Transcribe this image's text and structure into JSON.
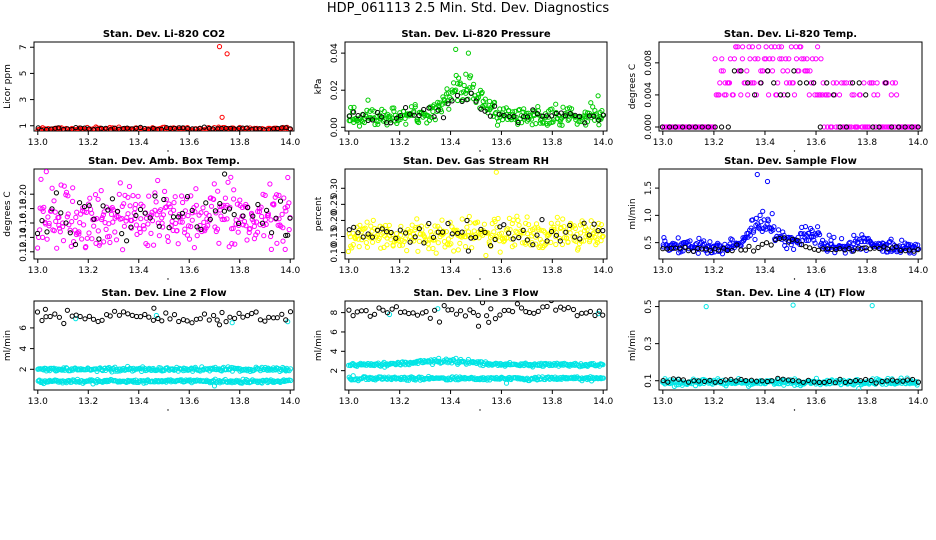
{
  "title": "HDP_061113  2.5 Min. Std. Dev. Diagnostics",
  "colors": {
    "black": "#000000",
    "red": "#ff0000",
    "green": "#00cc00",
    "magenta": "#ff00ff",
    "yellow": "#ffff00",
    "blue": "#0000ff",
    "cyan": "#00e5e5"
  },
  "chart_data": [
    {
      "type": "scatter",
      "title": "Stan. Dev. Li-820 CO2",
      "ylabel": "Licor ppm",
      "xlim": [
        13.0,
        14.0
      ],
      "ylim": [
        0.6,
        7.4
      ],
      "xticks": [
        "13.0",
        "13.2",
        "13.4",
        "13.6",
        "13.8",
        "14.0"
      ],
      "yticks": [
        "1",
        "3",
        "5",
        "7"
      ],
      "ytick_values": [
        1,
        3,
        5,
        7
      ],
      "series": [
        {
          "name": "main",
          "color": "red",
          "pattern": {
            "type": "flat",
            "n": 170,
            "base": 0.75,
            "noise": 0.08
          },
          "outliers": [
            [
              13.72,
              7.05
            ],
            [
              13.75,
              6.5
            ],
            [
              13.73,
              1.65
            ],
            [
              13.36,
              0.55
            ]
          ]
        },
        {
          "name": "overlay",
          "color": "black",
          "pattern": {
            "type": "flat",
            "n": 60,
            "base": 0.78,
            "noise": 0.06
          }
        }
      ]
    },
    {
      "type": "scatter",
      "title": "Stan. Dev. Li-820 Pressure",
      "ylabel": "kPa",
      "xlim": [
        13.0,
        14.0
      ],
      "ylim": [
        -0.002,
        0.046
      ],
      "xticks": [
        "13.0",
        "13.2",
        "13.4",
        "13.6",
        "13.8",
        "14.0"
      ],
      "yticks": [
        "0.00",
        "0.02",
        "0.04"
      ],
      "ytick_values": [
        0,
        0.02,
        0.04
      ],
      "series": [
        {
          "name": "main",
          "color": "green",
          "pattern": {
            "type": "hump",
            "n": 320,
            "base": 0.006,
            "noise": 0.0045,
            "peak_x": 13.45,
            "peak_amp": 0.018,
            "peak_w": 0.09
          },
          "outliers": [
            [
              13.42,
              0.042
            ],
            [
              13.47,
              0.04
            ],
            [
              13.98,
              0.017
            ]
          ]
        },
        {
          "name": "overlay",
          "color": "black",
          "pattern": {
            "type": "hump",
            "n": 55,
            "base": 0.006,
            "noise": 0.003,
            "peak_x": 13.45,
            "peak_amp": 0.01,
            "peak_w": 0.08
          }
        }
      ]
    },
    {
      "type": "scatter",
      "title": "Stan. Dev. Li-820 Temp.",
      "ylabel": "degrees C",
      "xlim": [
        13.0,
        14.0
      ],
      "ylim": [
        -0.0005,
        0.0106
      ],
      "xticks": [
        "13.0",
        "13.2",
        "13.4",
        "13.6",
        "13.8",
        "14.0"
      ],
      "yticks": [
        "0.000",
        "0.004",
        "0.008"
      ],
      "ytick_values": [
        0,
        0.004,
        0.008
      ],
      "series": [
        {
          "name": "main",
          "color": "magenta",
          "pattern": {
            "type": "levels",
            "n": 230,
            "base": 0,
            "x0": 13.2,
            "x1": 13.62,
            "tail_x1": 13.92,
            "levels": [
              0.004,
              0.0055,
              0.007,
              0.0085,
              0.01
            ]
          }
        },
        {
          "name": "overlay",
          "color": "black",
          "pattern": {
            "type": "levels",
            "n": 40,
            "base": 0,
            "x0": 13.28,
            "x1": 13.55,
            "tail_x1": 13.92,
            "levels": [
              0.004,
              0.0055,
              0.007
            ]
          }
        }
      ]
    },
    {
      "type": "scatter",
      "title": "Stan. Dev. Amb. Box Temp.",
      "ylabel": "degrees C",
      "xlim": [
        13.0,
        14.0
      ],
      "ylim": [
        0.11,
        0.235
      ],
      "xticks": [
        "13.0",
        "13.2",
        "13.4",
        "13.6",
        "13.8",
        "14.0"
      ],
      "yticks": [
        "0.12",
        "0.14",
        "0.16",
        "0.18",
        "0.20"
      ],
      "ytick_values": [
        0.12,
        0.14,
        0.16,
        0.18,
        0.2
      ],
      "series": [
        {
          "name": "main",
          "color": "magenta",
          "pattern": {
            "type": "flat",
            "n": 330,
            "base": 0.168,
            "noise": 0.028
          }
        },
        {
          "name": "overlay",
          "color": "black",
          "pattern": {
            "type": "flat",
            "n": 55,
            "base": 0.17,
            "noise": 0.02
          },
          "outliers": [
            [
              13.74,
              0.228
            ],
            [
              13.99,
              0.143
            ]
          ]
        }
      ]
    },
    {
      "type": "scatter",
      "title": "Stan. Dev. Gas Stream RH",
      "ylabel": "percent",
      "xlim": [
        13.0,
        14.0
      ],
      "ylim": [
        0.08,
        0.36
      ],
      "xticks": [
        "13.0",
        "13.2",
        "13.4",
        "13.6",
        "13.8",
        "14.0"
      ],
      "yticks": [
        "0.10",
        "0.15",
        "0.20",
        "0.25",
        "0.30"
      ],
      "ytick_values": [
        0.1,
        0.15,
        0.2,
        0.25,
        0.3
      ],
      "series": [
        {
          "name": "main",
          "color": "yellow",
          "pattern": {
            "type": "flat",
            "n": 330,
            "base": 0.155,
            "noise": 0.03
          },
          "outliers": [
            [
              13.58,
              0.35
            ]
          ]
        },
        {
          "name": "overlay",
          "color": "black",
          "pattern": {
            "type": "flat",
            "n": 55,
            "base": 0.16,
            "noise": 0.022
          },
          "outliers": [
            [
              13.47,
              0.105
            ]
          ]
        }
      ]
    },
    {
      "type": "scatter",
      "title": "Stan. Dev. Sample Flow",
      "ylabel": "ml/min",
      "xlim": [
        13.0,
        14.0
      ],
      "ylim": [
        0.2,
        1.85
      ],
      "xticks": [
        "13.0",
        "13.2",
        "13.4",
        "13.6",
        "13.8",
        "14.0"
      ],
      "yticks": [
        "0.5",
        "1.0",
        "1.5"
      ],
      "ytick_values": [
        0.5,
        1.0,
        1.5
      ],
      "series": [
        {
          "name": "main",
          "color": "blue",
          "pattern": {
            "type": "hump2",
            "n": 320,
            "base": 0.42,
            "noise": 0.06,
            "peak_x": 13.4,
            "peak_amp": 0.55,
            "peak_w": 0.07,
            "peak2_x": 13.58,
            "peak2_amp": 0.3,
            "peak2_w": 0.05,
            "peak3_x": 13.78,
            "peak3_amp": 0.12,
            "peak3_w": 0.04
          },
          "outliers": [
            [
              13.37,
              1.75
            ],
            [
              13.41,
              1.62
            ]
          ]
        },
        {
          "name": "overlay",
          "color": "black",
          "pattern": {
            "type": "hump",
            "n": 60,
            "base": 0.38,
            "noise": 0.05,
            "peak_x": 13.48,
            "peak_amp": 0.2,
            "peak_w": 0.08
          }
        }
      ]
    },
    {
      "type": "scatter",
      "title": "Stan. Dev. Line 2 Flow",
      "ylabel": "ml/min",
      "xlim": [
        13.0,
        14.0
      ],
      "ylim": [
        0.0,
        8.6
      ],
      "xticks": [
        "13.0",
        "13.2",
        "13.4",
        "13.6",
        "13.8",
        "14.0"
      ],
      "yticks": [
        "2",
        "4",
        "6"
      ],
      "ytick_values": [
        2,
        4,
        6
      ],
      "series": [
        {
          "name": "cyan-upper",
          "color": "cyan",
          "pattern": {
            "type": "flat",
            "n": 260,
            "base": 2.0,
            "noise": 0.12
          }
        },
        {
          "name": "cyan-lower",
          "color": "cyan",
          "pattern": {
            "type": "flat",
            "n": 260,
            "base": 0.85,
            "noise": 0.1
          },
          "outliers": [
            [
              13.7,
              0.4
            ]
          ]
        },
        {
          "name": "cyan-top",
          "color": "cyan",
          "pattern": {
            "type": "flat",
            "n": 0,
            "base": 0,
            "noise": 0
          },
          "outliers": [
            [
              13.15,
              6.9
            ],
            [
              13.47,
              7.2
            ],
            [
              13.77,
              6.5
            ],
            [
              13.99,
              6.6
            ]
          ]
        },
        {
          "name": "overlay",
          "color": "black",
          "pattern": {
            "type": "flat",
            "n": 60,
            "base": 7.0,
            "noise": 0.4
          },
          "outliers": [
            [
              13.03,
              7.8
            ],
            [
              13.72,
              6.3
            ],
            [
              13.46,
              7.9
            ]
          ]
        }
      ]
    },
    {
      "type": "scatter",
      "title": "Stan. Dev. Line 3 Flow",
      "ylabel": "ml/min",
      "xlim": [
        13.0,
        14.0
      ],
      "ylim": [
        0.0,
        9.2
      ],
      "xticks": [
        "13.0",
        "13.2",
        "13.4",
        "13.6",
        "13.8",
        "14.0"
      ],
      "yticks": [
        "2",
        "4",
        "6",
        "8"
      ],
      "ytick_values": [
        2,
        4,
        6,
        8
      ],
      "series": [
        {
          "name": "cyan-upper",
          "color": "cyan",
          "pattern": {
            "type": "hump",
            "n": 270,
            "base": 2.6,
            "noise": 0.15,
            "peak_x": 13.38,
            "peak_amp": 0.5,
            "peak_w": 0.15
          }
        },
        {
          "name": "cyan-lower",
          "color": "cyan",
          "pattern": {
            "type": "flat",
            "n": 270,
            "base": 1.2,
            "noise": 0.12
          },
          "outliers": [
            [
              13.62,
              0.7
            ]
          ]
        },
        {
          "name": "cyan-top",
          "color": "cyan",
          "pattern": {
            "type": "flat",
            "n": 0,
            "base": 0,
            "noise": 0
          },
          "outliers": [
            [
              13.16,
              7.8
            ],
            [
              13.35,
              8.4
            ],
            [
              13.98,
              7.9
            ]
          ]
        },
        {
          "name": "overlay",
          "color": "black",
          "pattern": {
            "type": "flat",
            "n": 60,
            "base": 8.1,
            "noise": 0.45
          },
          "outliers": [
            [
              13.51,
              6.6
            ],
            [
              13.55,
              7.0
            ]
          ]
        }
      ]
    },
    {
      "type": "scatter",
      "title": "Stan. Dev. Line 4 (LT) Flow",
      "ylabel": "ml/min",
      "xlim": [
        13.0,
        14.0
      ],
      "ylim": [
        0.05,
        0.53
      ],
      "xticks": [
        "13.0",
        "13.2",
        "13.4",
        "13.6",
        "13.8",
        "14.0"
      ],
      "yticks": [
        "0.1",
        "0.3",
        "0.5"
      ],
      "ytick_values": [
        0.1,
        0.3,
        0.5
      ],
      "series": [
        {
          "name": "main",
          "color": "cyan",
          "pattern": {
            "type": "flat",
            "n": 300,
            "base": 0.092,
            "noise": 0.01
          },
          "outliers": [
            [
              13.17,
              0.5
            ],
            [
              13.51,
              0.508
            ],
            [
              13.82,
              0.505
            ]
          ]
        },
        {
          "name": "overlay",
          "color": "black",
          "pattern": {
            "type": "flat",
            "n": 50,
            "base": 0.1,
            "noise": 0.008
          }
        }
      ]
    }
  ]
}
